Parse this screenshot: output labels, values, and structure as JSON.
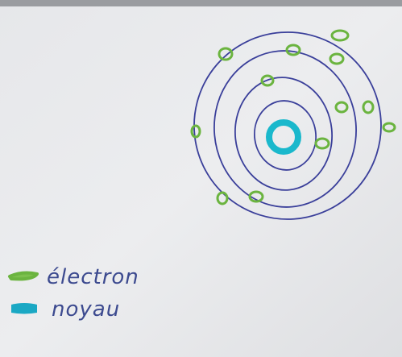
{
  "legend": {
    "items": [
      {
        "label": "électron"
      },
      {
        "label": "noyau"
      }
    ]
  }
}
